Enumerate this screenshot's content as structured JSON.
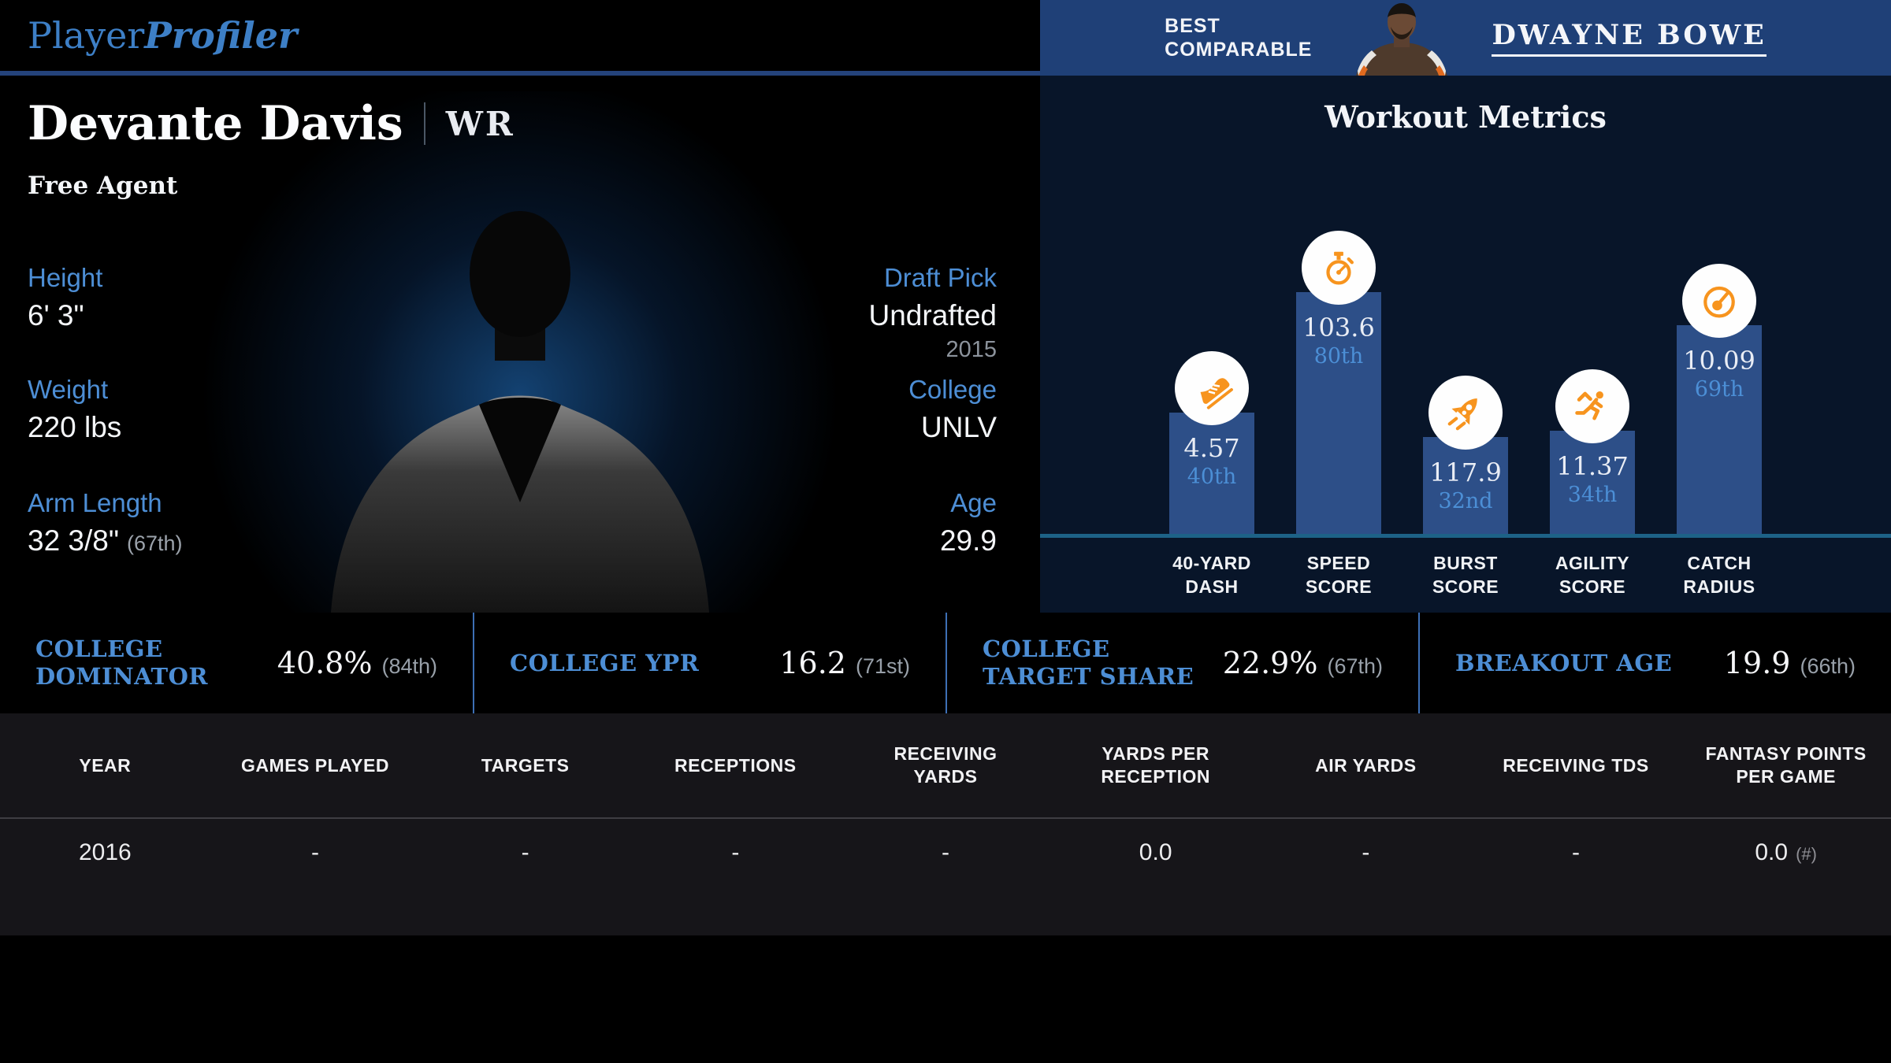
{
  "header": {
    "logo_part1": "Player",
    "logo_part2": "Profiler",
    "best_comparable": {
      "label_line1": "BEST",
      "label_line2": "COMPARABLE",
      "player_name": "DWAYNE BOWE"
    }
  },
  "player": {
    "name": "Devante Davis",
    "position": "WR",
    "team_status": "Free Agent",
    "bio_left": [
      {
        "label": "Height",
        "value": "6' 3\"",
        "percentile": "",
        "sub": ""
      },
      {
        "label": "Weight",
        "value": "220 lbs",
        "percentile": "",
        "sub": ""
      },
      {
        "label": "Arm Length",
        "value": "32 3/8\"",
        "percentile": "(67th)",
        "sub": ""
      }
    ],
    "bio_right": [
      {
        "label": "Draft Pick",
        "value": "Undrafted",
        "percentile": "",
        "sub": "2015"
      },
      {
        "label": "College",
        "value": "UNLV",
        "percentile": "",
        "sub": ""
      },
      {
        "label": "Age",
        "value": "29.9",
        "percentile": "",
        "sub": ""
      }
    ]
  },
  "chart_data": {
    "type": "bar",
    "title": "Workout Metrics",
    "categories": [
      "40-Yard Dash",
      "Speed Score",
      "Burst Score",
      "Agility Score",
      "Catch Radius"
    ],
    "series": [
      {
        "name": "metric_value",
        "values": [
          4.57,
          103.6,
          117.9,
          11.37,
          10.09
        ]
      },
      {
        "name": "percentile",
        "values": [
          40,
          80,
          32,
          34,
          69
        ]
      }
    ],
    "ylim": [
      0,
      100
    ],
    "grid": false,
    "legend": false,
    "bar_color": "#2D4F88",
    "percentile_text_color": "#4C8FD6",
    "icon_color": "#F7941E",
    "bars": [
      {
        "label_line1": "40-YARD",
        "label_line2": "DASH",
        "value": "4.57",
        "percentile_label": "40th",
        "percentile": 40,
        "icon": "shoe-icon"
      },
      {
        "label_line1": "SPEED",
        "label_line2": "SCORE",
        "value": "103.6",
        "percentile_label": "80th",
        "percentile": 80,
        "icon": "stopwatch-icon"
      },
      {
        "label_line1": "BURST",
        "label_line2": "SCORE",
        "value": "117.9",
        "percentile_label": "32nd",
        "percentile": 32,
        "icon": "rocket-icon"
      },
      {
        "label_line1": "AGILITY",
        "label_line2": "SCORE",
        "value": "11.37",
        "percentile_label": "34th",
        "percentile": 34,
        "icon": "runner-icon"
      },
      {
        "label_line1": "CATCH",
        "label_line2": "RADIUS",
        "value": "10.09",
        "percentile_label": "69th",
        "percentile": 69,
        "icon": "gauge-icon"
      }
    ]
  },
  "college_stats": [
    {
      "label": "COLLEGE DOMINATOR",
      "value": "40.8%",
      "percentile": "(84th)"
    },
    {
      "label": "COLLEGE YPR",
      "value": "16.2",
      "percentile": "(71st)"
    },
    {
      "label": "COLLEGE TARGET SHARE",
      "value": "22.9%",
      "percentile": "(67th)"
    },
    {
      "label": "BREAKOUT AGE",
      "value": "19.9",
      "percentile": "(66th)"
    }
  ],
  "stats_table": {
    "columns": [
      "YEAR",
      "GAMES PLAYED",
      "TARGETS",
      "RECEPTIONS",
      "RECEIVING YARDS",
      "YARDS PER RECEPTION",
      "AIR YARDS",
      "RECEIVING TDS",
      "FANTASY POINTS PER GAME"
    ],
    "rows": [
      {
        "cells": [
          {
            "text": "2016"
          },
          {
            "text": "-"
          },
          {
            "text": "-"
          },
          {
            "text": "-"
          },
          {
            "text": "-"
          },
          {
            "text": "0.0"
          },
          {
            "text": "-"
          },
          {
            "text": "-"
          },
          {
            "text": "0.0",
            "suffix": "(#)"
          }
        ]
      }
    ]
  },
  "colors": {
    "accent_blue": "#4D8ED5",
    "band_blue": "#1F4077",
    "panel_navy": "#081529",
    "bar_blue": "#2D4F88",
    "baseline_teal": "#1D6287",
    "orange": "#F7941E"
  }
}
